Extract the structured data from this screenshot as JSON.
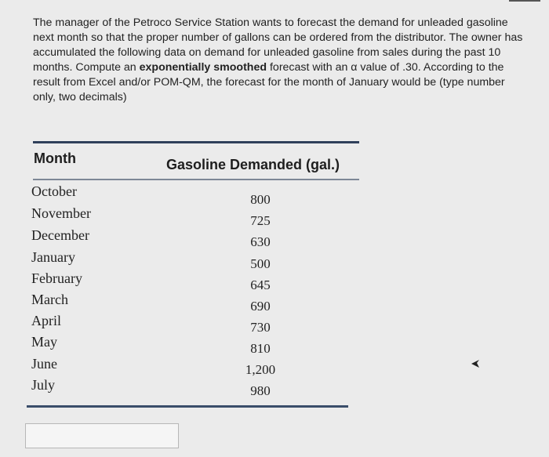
{
  "question": {
    "part1": "The manager of the Petroco Service Station wants to forecast the demand for unleaded gasoline next month so that the proper number of gallons can be ordered from the distributor. The owner has accumulated the following data on demand for unleaded gasoline from sales during the past 10 months. Compute an ",
    "bold": "exponentially smoothed",
    "part2": " forecast with an α value of .30. According to the result from Excel and/or POM-QM, the forecast for the month of January would be (type number only, two decimals)"
  },
  "table": {
    "headers": {
      "month": "Month",
      "demand": "Gasoline Demanded (gal.)"
    },
    "rows": [
      {
        "month": "October",
        "demand": "800"
      },
      {
        "month": "November",
        "demand": "725"
      },
      {
        "month": "December",
        "demand": "630"
      },
      {
        "month": "January",
        "demand": "500"
      },
      {
        "month": "February",
        "demand": "645"
      },
      {
        "month": "March",
        "demand": "690"
      },
      {
        "month": "April",
        "demand": "730"
      },
      {
        "month": "May",
        "demand": "810"
      },
      {
        "month": "June",
        "demand": "1,200"
      },
      {
        "month": "July",
        "demand": "980"
      }
    ]
  },
  "answer": {
    "value": ""
  },
  "icons": {
    "cursor": "arrow-cursor-icon"
  }
}
